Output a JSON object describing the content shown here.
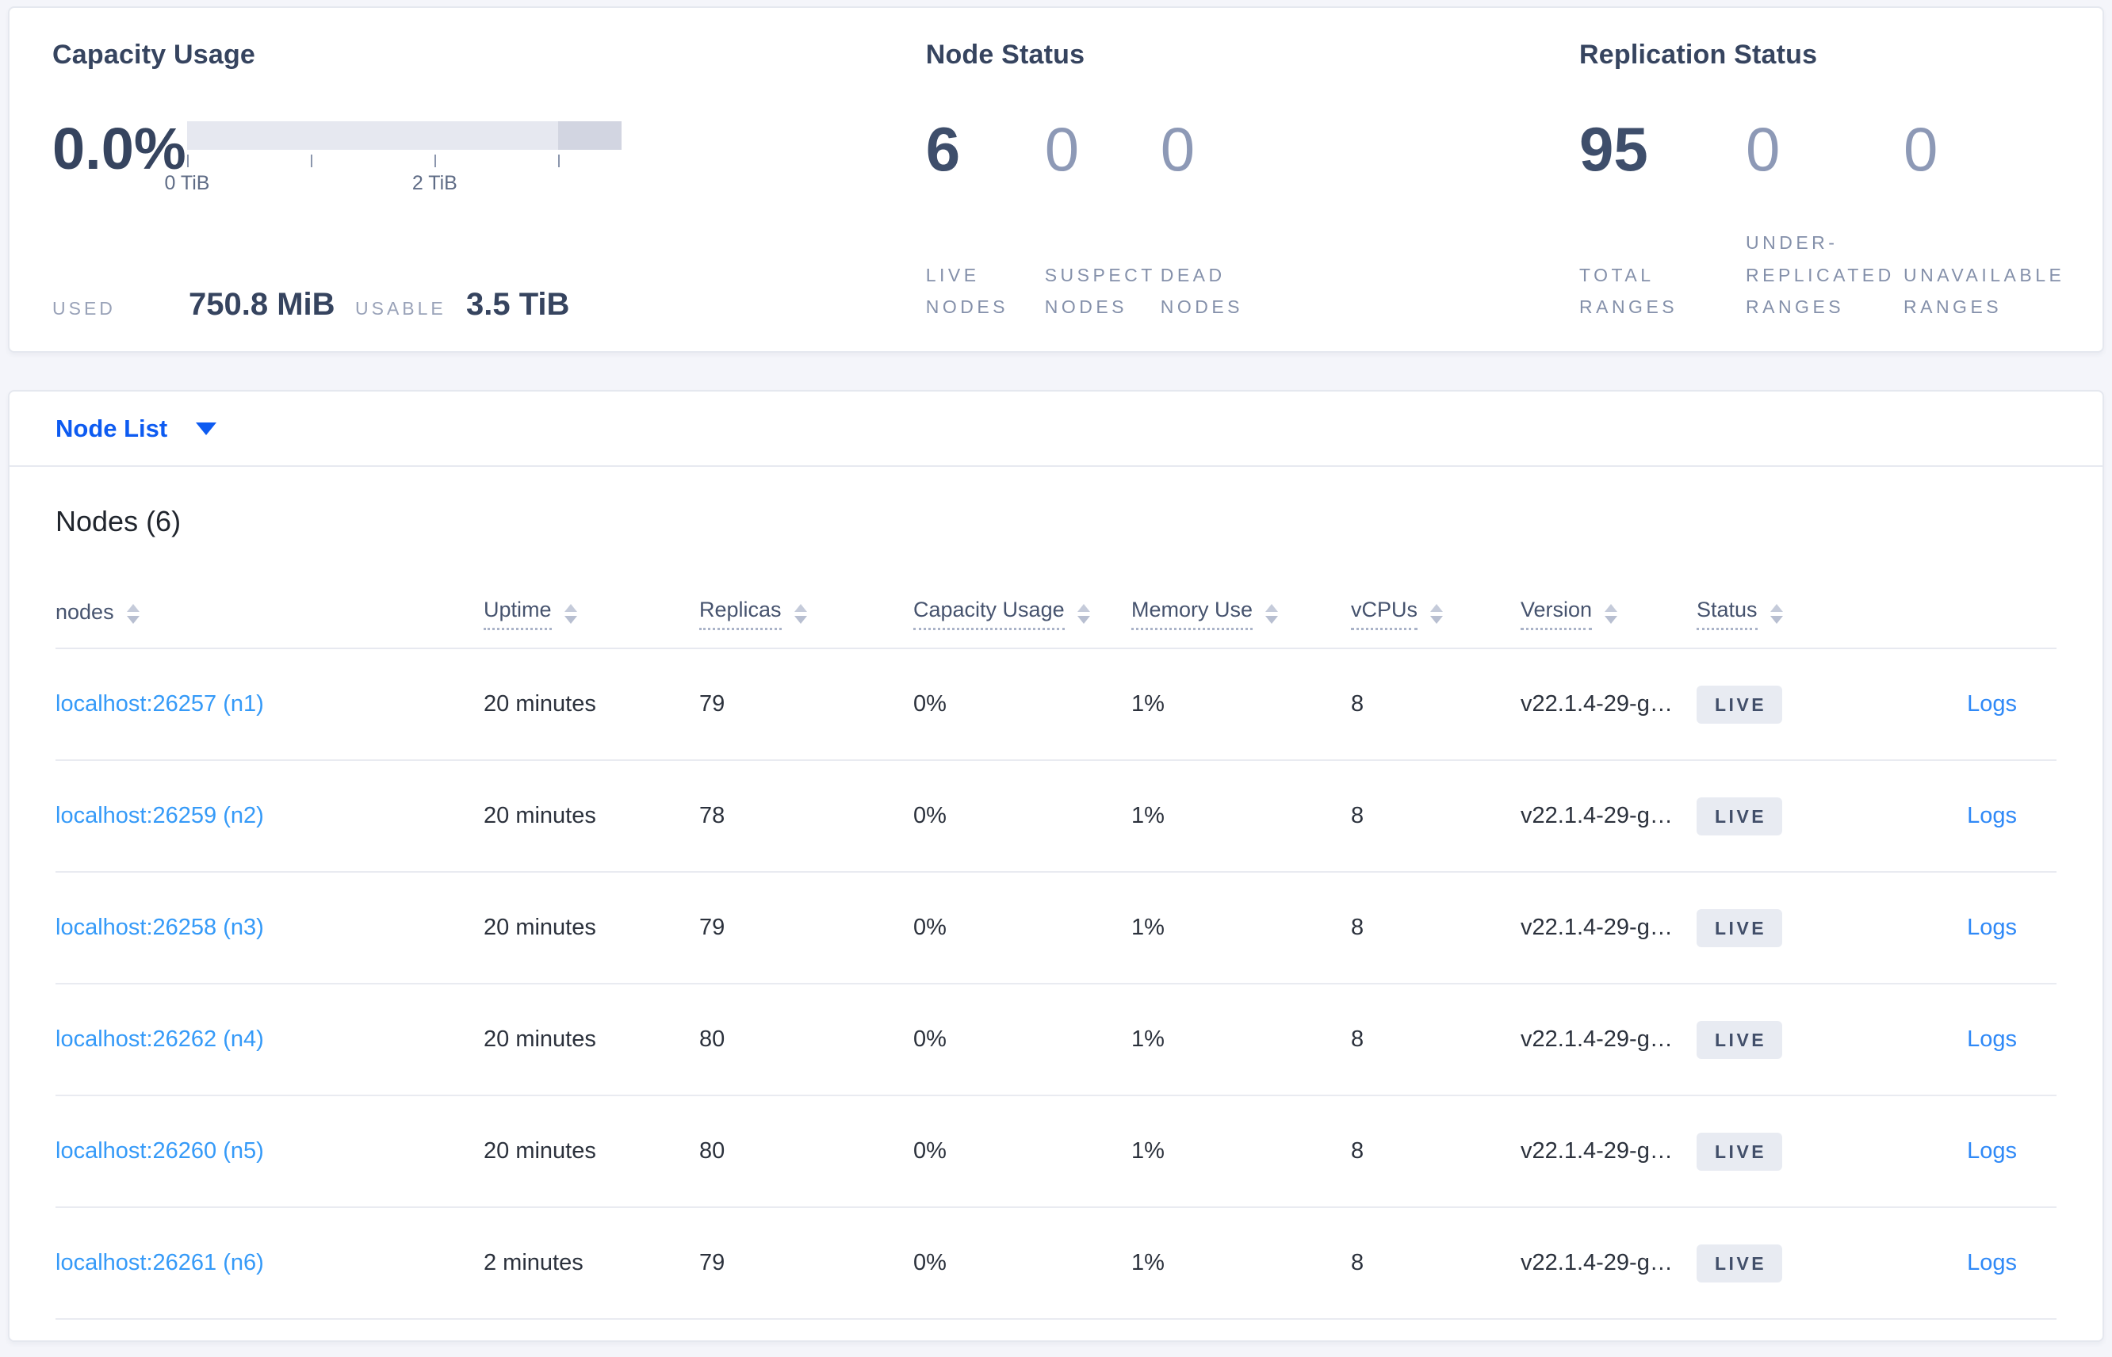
{
  "colors": {
    "accent_blue": "#0d5bf1",
    "link_blue": "#359af8",
    "dark_slate": "#36445f",
    "muted_stat": "#8d99b6",
    "badge_bg": "#e8ebf2",
    "gauge_light": "#e6e8f0",
    "gauge_dark": "#d2d5e1"
  },
  "capacity": {
    "title": "Capacity Usage",
    "percent": "0.0%",
    "used_label": "USED",
    "used_value": "750.8 MiB",
    "usable_label": "USABLE",
    "usable_value": "3.5 TiB",
    "gauge": {
      "ticks": [
        {
          "pos": 0,
          "label": "0 TiB"
        },
        {
          "pos": 28.5,
          "label": ""
        },
        {
          "pos": 57,
          "label": "2 TiB"
        },
        {
          "pos": 85.4,
          "label": ""
        }
      ],
      "dark_segment_from_percent": 85.4,
      "dark_segment_to_percent": 100
    }
  },
  "node_status": {
    "title": "Node Status",
    "stats": [
      {
        "value": "6",
        "label": "LIVE NODES",
        "emphasis": true
      },
      {
        "value": "0",
        "label": "SUSPECT NODES",
        "emphasis": false
      },
      {
        "value": "0",
        "label": "DEAD NODES",
        "emphasis": false
      }
    ]
  },
  "replication_status": {
    "title": "Replication Status",
    "stats": [
      {
        "value": "95",
        "label": "TOTAL RANGES",
        "emphasis": true
      },
      {
        "value": "0",
        "label": "UNDER-REPLICATED RANGES",
        "emphasis": false
      },
      {
        "value": "0",
        "label": "UNAVAILABLE RANGES",
        "emphasis": false
      }
    ]
  },
  "node_list": {
    "selector_label": "Node List"
  },
  "table": {
    "title": "Nodes (6)",
    "columns": [
      {
        "key": "node",
        "label": "nodes",
        "underline": false
      },
      {
        "key": "uptime",
        "label": "Uptime",
        "underline": true
      },
      {
        "key": "replicas",
        "label": "Replicas",
        "underline": true
      },
      {
        "key": "capacity",
        "label": "Capacity Usage",
        "underline": true
      },
      {
        "key": "memory",
        "label": "Memory Use",
        "underline": true
      },
      {
        "key": "vcpus",
        "label": "vCPUs",
        "underline": true
      },
      {
        "key": "version",
        "label": "Version",
        "underline": true
      },
      {
        "key": "status",
        "label": "Status",
        "underline": true
      }
    ],
    "logs_label": "Logs",
    "rows": [
      {
        "node": "localhost:26257 (n1)",
        "uptime": "20 minutes",
        "replicas": "79",
        "capacity": "0%",
        "memory": "1%",
        "vcpus": "8",
        "version": "v22.1.4-29-g…",
        "status": "LIVE"
      },
      {
        "node": "localhost:26259 (n2)",
        "uptime": "20 minutes",
        "replicas": "78",
        "capacity": "0%",
        "memory": "1%",
        "vcpus": "8",
        "version": "v22.1.4-29-g…",
        "status": "LIVE"
      },
      {
        "node": "localhost:26258 (n3)",
        "uptime": "20 minutes",
        "replicas": "79",
        "capacity": "0%",
        "memory": "1%",
        "vcpus": "8",
        "version": "v22.1.4-29-g…",
        "status": "LIVE"
      },
      {
        "node": "localhost:26262 (n4)",
        "uptime": "20 minutes",
        "replicas": "80",
        "capacity": "0%",
        "memory": "1%",
        "vcpus": "8",
        "version": "v22.1.4-29-g…",
        "status": "LIVE"
      },
      {
        "node": "localhost:26260 (n5)",
        "uptime": "20 minutes",
        "replicas": "80",
        "capacity": "0%",
        "memory": "1%",
        "vcpus": "8",
        "version": "v22.1.4-29-g…",
        "status": "LIVE"
      },
      {
        "node": "localhost:26261 (n6)",
        "uptime": "2 minutes",
        "replicas": "79",
        "capacity": "0%",
        "memory": "1%",
        "vcpus": "8",
        "version": "v22.1.4-29-g…",
        "status": "LIVE"
      }
    ]
  }
}
